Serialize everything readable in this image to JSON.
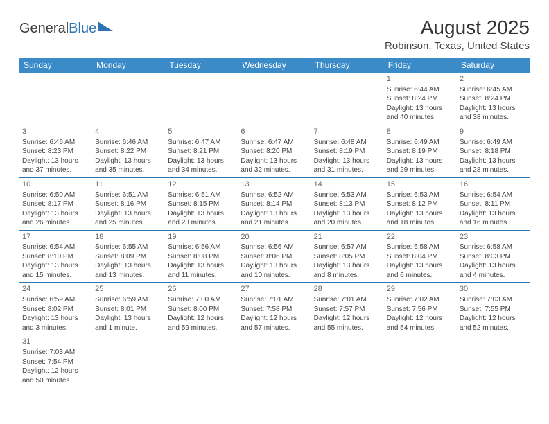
{
  "logo": {
    "text1": "General",
    "text2": "Blue"
  },
  "title": "August 2025",
  "location": "Robinson, Texas, United States",
  "colors": {
    "header_bg": "#3b8bc9",
    "border": "#2e74b5",
    "text": "#444444"
  },
  "weekdays": [
    "Sunday",
    "Monday",
    "Tuesday",
    "Wednesday",
    "Thursday",
    "Friday",
    "Saturday"
  ],
  "weeks": [
    [
      null,
      null,
      null,
      null,
      null,
      {
        "n": "1",
        "sr": "Sunrise: 6:44 AM",
        "ss": "Sunset: 8:24 PM",
        "d1": "Daylight: 13 hours",
        "d2": "and 40 minutes."
      },
      {
        "n": "2",
        "sr": "Sunrise: 6:45 AM",
        "ss": "Sunset: 8:24 PM",
        "d1": "Daylight: 13 hours",
        "d2": "and 38 minutes."
      }
    ],
    [
      {
        "n": "3",
        "sr": "Sunrise: 6:46 AM",
        "ss": "Sunset: 8:23 PM",
        "d1": "Daylight: 13 hours",
        "d2": "and 37 minutes."
      },
      {
        "n": "4",
        "sr": "Sunrise: 6:46 AM",
        "ss": "Sunset: 8:22 PM",
        "d1": "Daylight: 13 hours",
        "d2": "and 35 minutes."
      },
      {
        "n": "5",
        "sr": "Sunrise: 6:47 AM",
        "ss": "Sunset: 8:21 PM",
        "d1": "Daylight: 13 hours",
        "d2": "and 34 minutes."
      },
      {
        "n": "6",
        "sr": "Sunrise: 6:47 AM",
        "ss": "Sunset: 8:20 PM",
        "d1": "Daylight: 13 hours",
        "d2": "and 32 minutes."
      },
      {
        "n": "7",
        "sr": "Sunrise: 6:48 AM",
        "ss": "Sunset: 8:19 PM",
        "d1": "Daylight: 13 hours",
        "d2": "and 31 minutes."
      },
      {
        "n": "8",
        "sr": "Sunrise: 6:49 AM",
        "ss": "Sunset: 8:19 PM",
        "d1": "Daylight: 13 hours",
        "d2": "and 29 minutes."
      },
      {
        "n": "9",
        "sr": "Sunrise: 6:49 AM",
        "ss": "Sunset: 8:18 PM",
        "d1": "Daylight: 13 hours",
        "d2": "and 28 minutes."
      }
    ],
    [
      {
        "n": "10",
        "sr": "Sunrise: 6:50 AM",
        "ss": "Sunset: 8:17 PM",
        "d1": "Daylight: 13 hours",
        "d2": "and 26 minutes."
      },
      {
        "n": "11",
        "sr": "Sunrise: 6:51 AM",
        "ss": "Sunset: 8:16 PM",
        "d1": "Daylight: 13 hours",
        "d2": "and 25 minutes."
      },
      {
        "n": "12",
        "sr": "Sunrise: 6:51 AM",
        "ss": "Sunset: 8:15 PM",
        "d1": "Daylight: 13 hours",
        "d2": "and 23 minutes."
      },
      {
        "n": "13",
        "sr": "Sunrise: 6:52 AM",
        "ss": "Sunset: 8:14 PM",
        "d1": "Daylight: 13 hours",
        "d2": "and 21 minutes."
      },
      {
        "n": "14",
        "sr": "Sunrise: 6:53 AM",
        "ss": "Sunset: 8:13 PM",
        "d1": "Daylight: 13 hours",
        "d2": "and 20 minutes."
      },
      {
        "n": "15",
        "sr": "Sunrise: 6:53 AM",
        "ss": "Sunset: 8:12 PM",
        "d1": "Daylight: 13 hours",
        "d2": "and 18 minutes."
      },
      {
        "n": "16",
        "sr": "Sunrise: 6:54 AM",
        "ss": "Sunset: 8:11 PM",
        "d1": "Daylight: 13 hours",
        "d2": "and 16 minutes."
      }
    ],
    [
      {
        "n": "17",
        "sr": "Sunrise: 6:54 AM",
        "ss": "Sunset: 8:10 PM",
        "d1": "Daylight: 13 hours",
        "d2": "and 15 minutes."
      },
      {
        "n": "18",
        "sr": "Sunrise: 6:55 AM",
        "ss": "Sunset: 8:09 PM",
        "d1": "Daylight: 13 hours",
        "d2": "and 13 minutes."
      },
      {
        "n": "19",
        "sr": "Sunrise: 6:56 AM",
        "ss": "Sunset: 8:08 PM",
        "d1": "Daylight: 13 hours",
        "d2": "and 11 minutes."
      },
      {
        "n": "20",
        "sr": "Sunrise: 6:56 AM",
        "ss": "Sunset: 8:06 PM",
        "d1": "Daylight: 13 hours",
        "d2": "and 10 minutes."
      },
      {
        "n": "21",
        "sr": "Sunrise: 6:57 AM",
        "ss": "Sunset: 8:05 PM",
        "d1": "Daylight: 13 hours",
        "d2": "and 8 minutes."
      },
      {
        "n": "22",
        "sr": "Sunrise: 6:58 AM",
        "ss": "Sunset: 8:04 PM",
        "d1": "Daylight: 13 hours",
        "d2": "and 6 minutes."
      },
      {
        "n": "23",
        "sr": "Sunrise: 6:58 AM",
        "ss": "Sunset: 8:03 PM",
        "d1": "Daylight: 13 hours",
        "d2": "and 4 minutes."
      }
    ],
    [
      {
        "n": "24",
        "sr": "Sunrise: 6:59 AM",
        "ss": "Sunset: 8:02 PM",
        "d1": "Daylight: 13 hours",
        "d2": "and 3 minutes."
      },
      {
        "n": "25",
        "sr": "Sunrise: 6:59 AM",
        "ss": "Sunset: 8:01 PM",
        "d1": "Daylight: 13 hours",
        "d2": "and 1 minute."
      },
      {
        "n": "26",
        "sr": "Sunrise: 7:00 AM",
        "ss": "Sunset: 8:00 PM",
        "d1": "Daylight: 12 hours",
        "d2": "and 59 minutes."
      },
      {
        "n": "27",
        "sr": "Sunrise: 7:01 AM",
        "ss": "Sunset: 7:58 PM",
        "d1": "Daylight: 12 hours",
        "d2": "and 57 minutes."
      },
      {
        "n": "28",
        "sr": "Sunrise: 7:01 AM",
        "ss": "Sunset: 7:57 PM",
        "d1": "Daylight: 12 hours",
        "d2": "and 55 minutes."
      },
      {
        "n": "29",
        "sr": "Sunrise: 7:02 AM",
        "ss": "Sunset: 7:56 PM",
        "d1": "Daylight: 12 hours",
        "d2": "and 54 minutes."
      },
      {
        "n": "30",
        "sr": "Sunrise: 7:03 AM",
        "ss": "Sunset: 7:55 PM",
        "d1": "Daylight: 12 hours",
        "d2": "and 52 minutes."
      }
    ],
    [
      {
        "n": "31",
        "sr": "Sunrise: 7:03 AM",
        "ss": "Sunset: 7:54 PM",
        "d1": "Daylight: 12 hours",
        "d2": "and 50 minutes."
      },
      null,
      null,
      null,
      null,
      null,
      null
    ]
  ]
}
